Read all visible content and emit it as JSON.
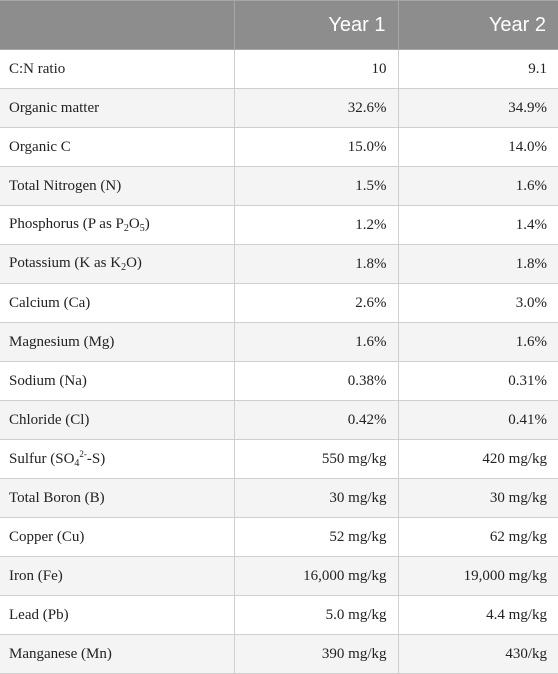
{
  "table": {
    "headers": [
      "",
      "Year 1",
      "Year 2"
    ],
    "rows": [
      {
        "name": [
          "C:N ratio"
        ],
        "year1": "10",
        "year2": "9.1"
      },
      {
        "name": [
          "Organic matter"
        ],
        "year1": "32.6%",
        "year2": "34.9%"
      },
      {
        "name": [
          "Organic C"
        ],
        "year1": "15.0%",
        "year2": "14.0%"
      },
      {
        "name": [
          "Total Nitrogen (N)"
        ],
        "year1": "1.5%",
        "year2": "1.6%"
      },
      {
        "name": [
          "Phosphorus (P as P",
          "2",
          "O",
          "5",
          ")"
        ],
        "year1": "1.2%",
        "year2": "1.4%"
      },
      {
        "name": [
          "Potassium (K as K",
          "2",
          "O)"
        ],
        "year1": "1.8%",
        "year2": "1.8%"
      },
      {
        "name": [
          "Calcium (Ca)"
        ],
        "year1": "2.6%",
        "year2": "3.0%"
      },
      {
        "name": [
          "Magnesium (Mg)"
        ],
        "year1": "1.6%",
        "year2": "1.6%"
      },
      {
        "name": [
          "Sodium (Na)"
        ],
        "year1": "0.38%",
        "year2": "0.31%"
      },
      {
        "name": [
          "Chloride (Cl)"
        ],
        "year1": "0.42%",
        "year2": "0.41%"
      },
      {
        "name": [
          "Sulfur (SO",
          "4",
          "2-",
          "-S)"
        ],
        "year1": "550 mg/kg",
        "year2": "420 mg/kg"
      },
      {
        "name": [
          "Total Boron (B)"
        ],
        "year1": "30 mg/kg",
        "year2": "30 mg/kg"
      },
      {
        "name": [
          "Copper (Cu)"
        ],
        "year1": "52 mg/kg",
        "year2": "62 mg/kg"
      },
      {
        "name": [
          "Iron (Fe)"
        ],
        "year1": "16,000 mg/kg",
        "year2": "19,000 mg/kg"
      },
      {
        "name": [
          "Lead (Pb)"
        ],
        "year1": "5.0 mg/kg",
        "year2": "4.4 mg/kg"
      },
      {
        "name": [
          "Manganese (Mn)"
        ],
        "year1": "390 mg/kg",
        "year2": "430/kg"
      }
    ]
  }
}
